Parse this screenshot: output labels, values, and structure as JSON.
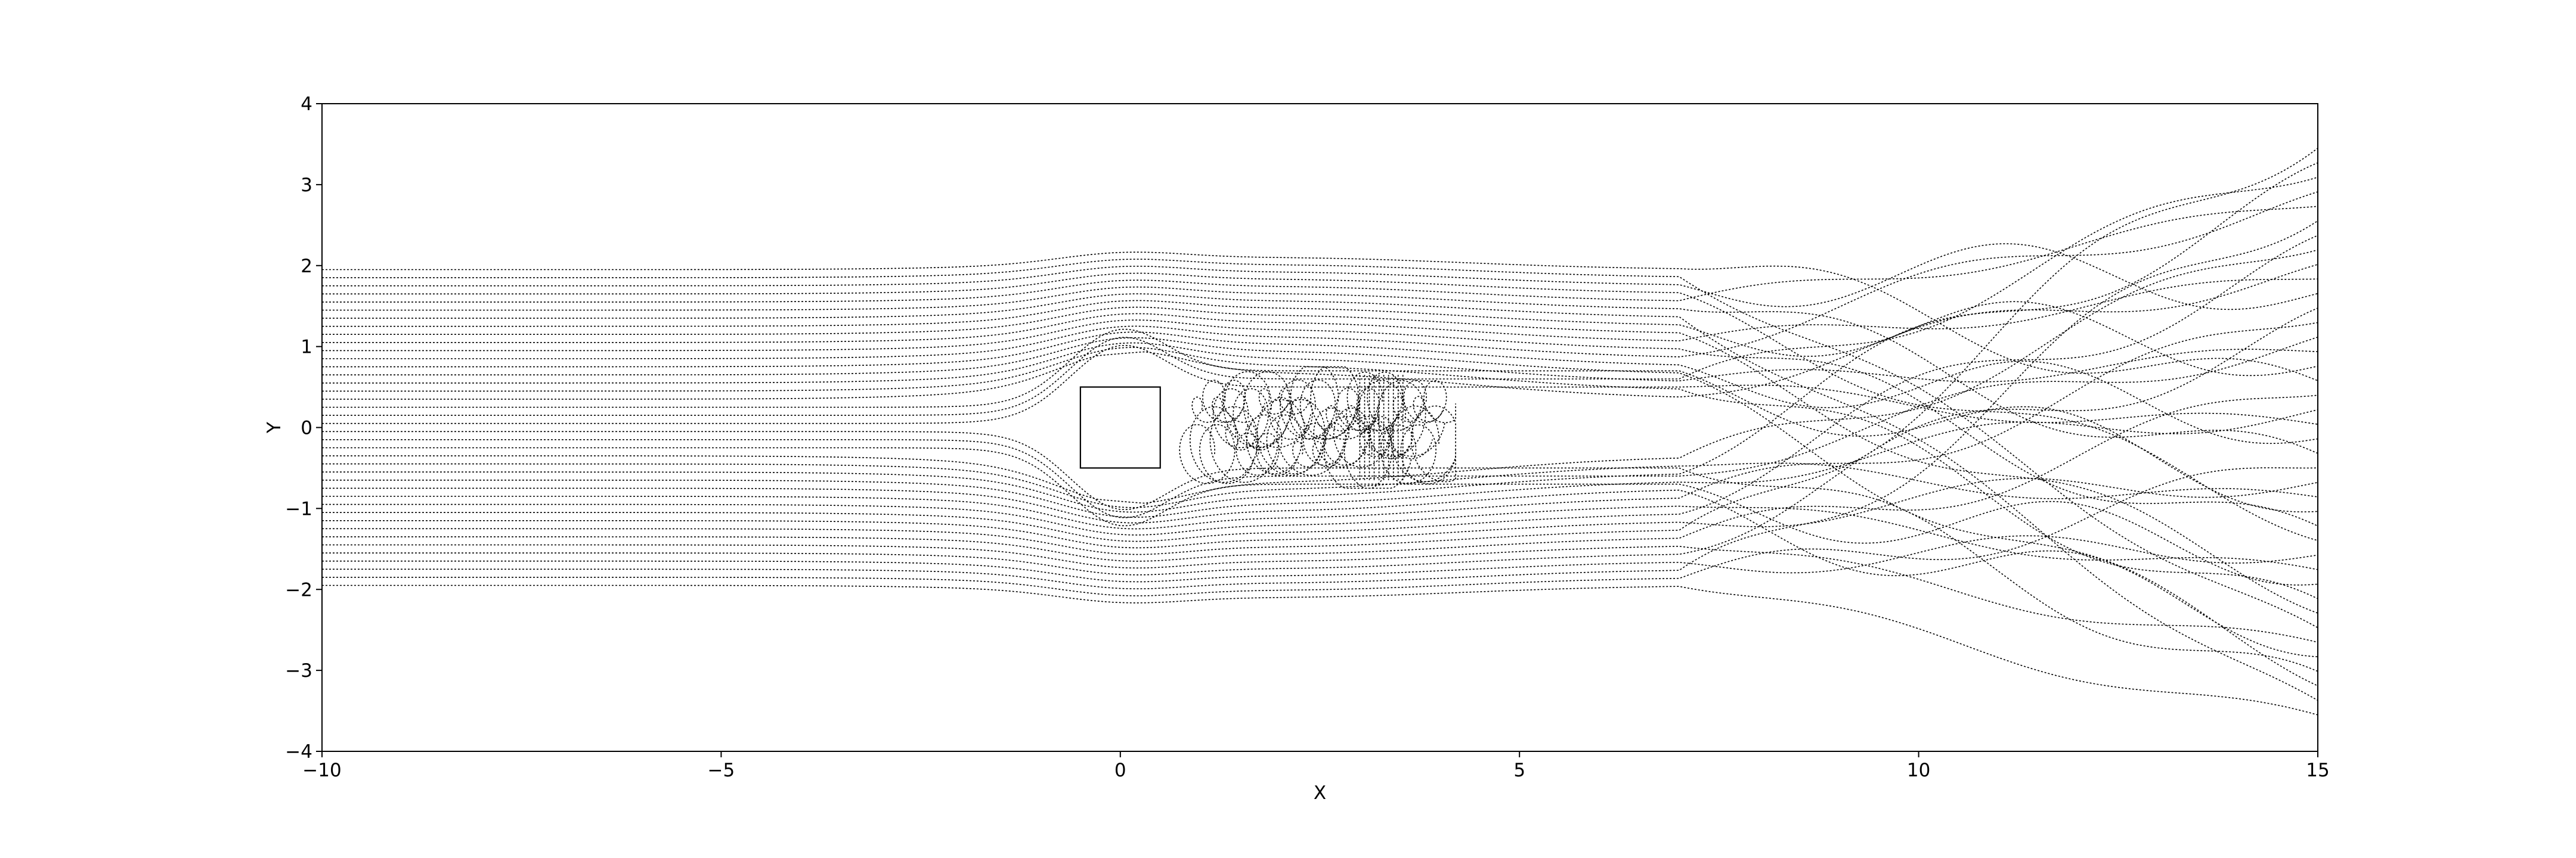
{
  "chart_data": {
    "type": "line",
    "title": "",
    "xlabel": "X",
    "ylabel": "Y",
    "xlim": [
      -10,
      15
    ],
    "ylim": [
      -4,
      4
    ],
    "xticks": [
      -10,
      -5,
      0,
      5,
      10,
      15
    ],
    "xtick_labels": [
      "−10",
      "−5",
      "0",
      "5",
      "10",
      "15"
    ],
    "yticks": [
      -4,
      -3,
      -2,
      -1,
      0,
      1,
      2,
      3,
      4
    ],
    "ytick_labels": [
      "−4",
      "−3",
      "−2",
      "−1",
      "0",
      "1",
      "2",
      "3",
      "4"
    ],
    "grid": false,
    "line_style": "dotted",
    "color": "#000000",
    "obstacle": {
      "shape": "square",
      "x_range": [
        -0.5,
        0.5
      ],
      "y_range": [
        -0.5,
        0.5
      ]
    },
    "streamlines": {
      "count": 40,
      "start_x": -10,
      "start_y_range": [
        -1.95,
        1.95
      ],
      "end_x": 15,
      "end_y_range": [
        -3.55,
        3.45
      ]
    }
  }
}
